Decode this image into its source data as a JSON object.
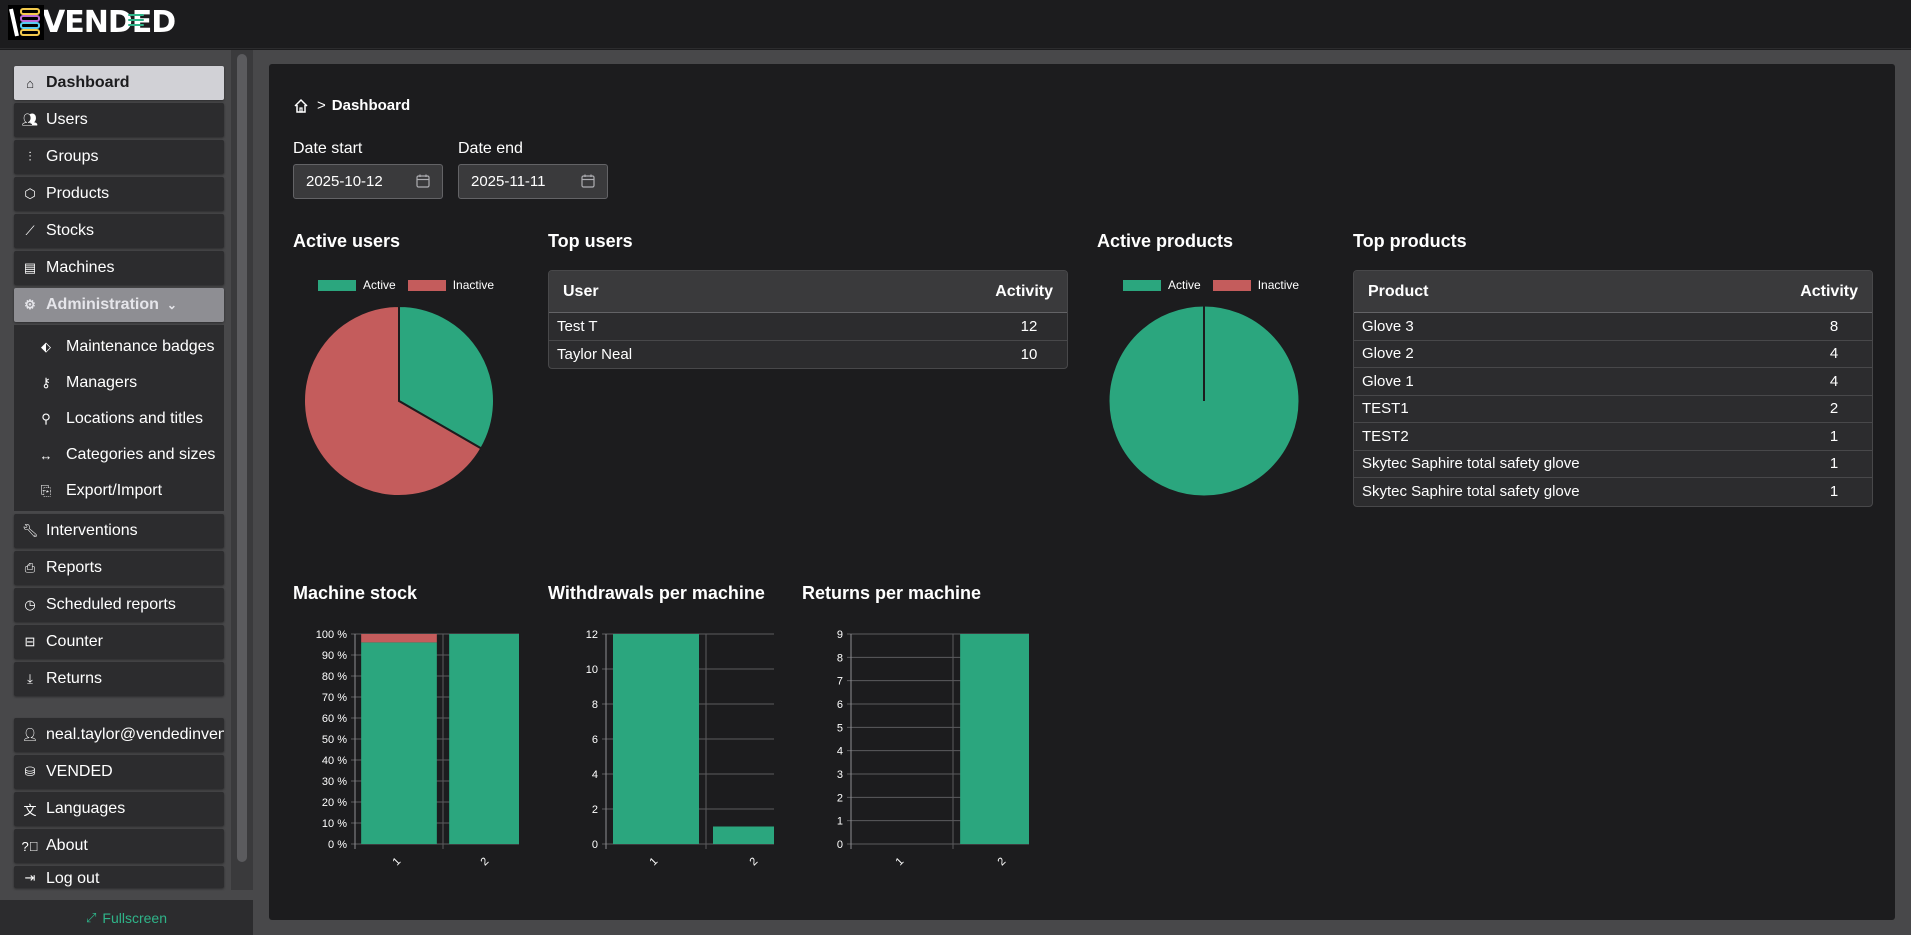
{
  "app": {
    "logo_text": "VENDED",
    "brand_color": "#2fb489"
  },
  "sidebar": {
    "items": [
      {
        "label": "Dashboard",
        "icon": "home-icon"
      },
      {
        "label": "Users",
        "icon": "users-icon"
      },
      {
        "label": "Groups",
        "icon": "sliders-icon"
      },
      {
        "label": "Products",
        "icon": "box-icon"
      },
      {
        "label": "Stocks",
        "icon": "chart-line-icon"
      },
      {
        "label": "Machines",
        "icon": "machine-icon"
      }
    ],
    "admin": {
      "label": "Administration",
      "sub_items": [
        {
          "label": "Maintenance badges",
          "icon": "tag-icon"
        },
        {
          "label": "Managers",
          "icon": "key-icon"
        },
        {
          "label": "Locations and titles",
          "icon": "map-pin-icon"
        },
        {
          "label": "Categories and sizes",
          "icon": "arrows-horizontal-icon"
        },
        {
          "label": "Export/Import",
          "icon": "file-import-icon"
        }
      ]
    },
    "items_after": [
      {
        "label": "Interventions",
        "icon": "wrench-icon"
      },
      {
        "label": "Reports",
        "icon": "printer-icon"
      },
      {
        "label": "Scheduled reports",
        "icon": "clock-icon"
      },
      {
        "label": "Counter",
        "icon": "inbox-icon"
      },
      {
        "label": "Returns",
        "icon": "download-icon"
      }
    ],
    "account": [
      {
        "label": "neal.taylor@vendedinven",
        "icon": "user-icon"
      },
      {
        "label": "VENDED",
        "icon": "database-icon"
      },
      {
        "label": "Languages",
        "icon": "translate-icon"
      },
      {
        "label": "About",
        "icon": "help-circle-icon"
      },
      {
        "label": "Log out",
        "icon": "logout-icon"
      }
    ],
    "fullscreen_label": "Fullscreen"
  },
  "breadcrumb": {
    "current": "Dashboard"
  },
  "filters": {
    "date_start_label": "Date start",
    "date_start_value": "2025-10-12",
    "date_end_label": "Date end",
    "date_end_value": "2025-11-11"
  },
  "sections": {
    "active_users": "Active users",
    "top_users": "Top users",
    "active_products": "Active products",
    "top_products": "Top products",
    "machine_stock": "Machine stock",
    "withdrawals": "Withdrawals per machine",
    "returns": "Returns per machine"
  },
  "legend": {
    "active": "Active",
    "inactive": "Inactive",
    "active_color": "#2ba67e",
    "inactive_color": "#c45c5c"
  },
  "top_users": {
    "col_user": "User",
    "col_activity": "Activity",
    "rows": [
      {
        "name": "Test T",
        "activity": "12"
      },
      {
        "name": "Taylor Neal",
        "activity": "10"
      }
    ]
  },
  "top_products": {
    "col_product": "Product",
    "col_activity": "Activity",
    "rows": [
      {
        "name": "Glove 3",
        "activity": "8"
      },
      {
        "name": "Glove 2",
        "activity": "4"
      },
      {
        "name": "Glove 1",
        "activity": "4"
      },
      {
        "name": "TEST1",
        "activity": "2"
      },
      {
        "name": "TEST2",
        "activity": "1"
      },
      {
        "name": "Skytec Saphire total safety glove",
        "activity": "1"
      },
      {
        "name": "Skytec Saphire total safety glove",
        "activity": "1"
      }
    ]
  },
  "chart_data": [
    {
      "type": "pie",
      "title": "Active users",
      "labels": [
        "Active",
        "Inactive"
      ],
      "values": [
        1,
        2
      ]
    },
    {
      "type": "pie",
      "title": "Active products",
      "labels": [
        "Active",
        "Inactive"
      ],
      "values": [
        1,
        0
      ]
    },
    {
      "type": "bar",
      "title": "Machine stock",
      "categories": [
        "1",
        "2"
      ],
      "series": [
        {
          "values": [
            96,
            100
          ]
        },
        {
          "values": [
            4,
            0
          ]
        }
      ],
      "stacked": true,
      "yticks": [
        "0 %",
        "10 %",
        "20 %",
        "30 %",
        "40 %",
        "50 %",
        "60 %",
        "70 %",
        "80 %",
        "90 %",
        "100 %"
      ],
      "ylim": [
        0,
        100
      ]
    },
    {
      "type": "bar",
      "title": "Withdrawals per machine",
      "categories": [
        "1",
        "2"
      ],
      "values": [
        12,
        1
      ],
      "yticks": [
        "0",
        "2",
        "4",
        "6",
        "8",
        "10",
        "12"
      ],
      "ylim": [
        0,
        12
      ]
    },
    {
      "type": "bar",
      "title": "Returns per machine",
      "categories": [
        "1",
        "2"
      ],
      "values": [
        0,
        9
      ],
      "yticks": [
        "0",
        "1",
        "2",
        "3",
        "4",
        "5",
        "6",
        "7",
        "8",
        "9"
      ],
      "ylim": [
        0,
        9
      ]
    }
  ]
}
